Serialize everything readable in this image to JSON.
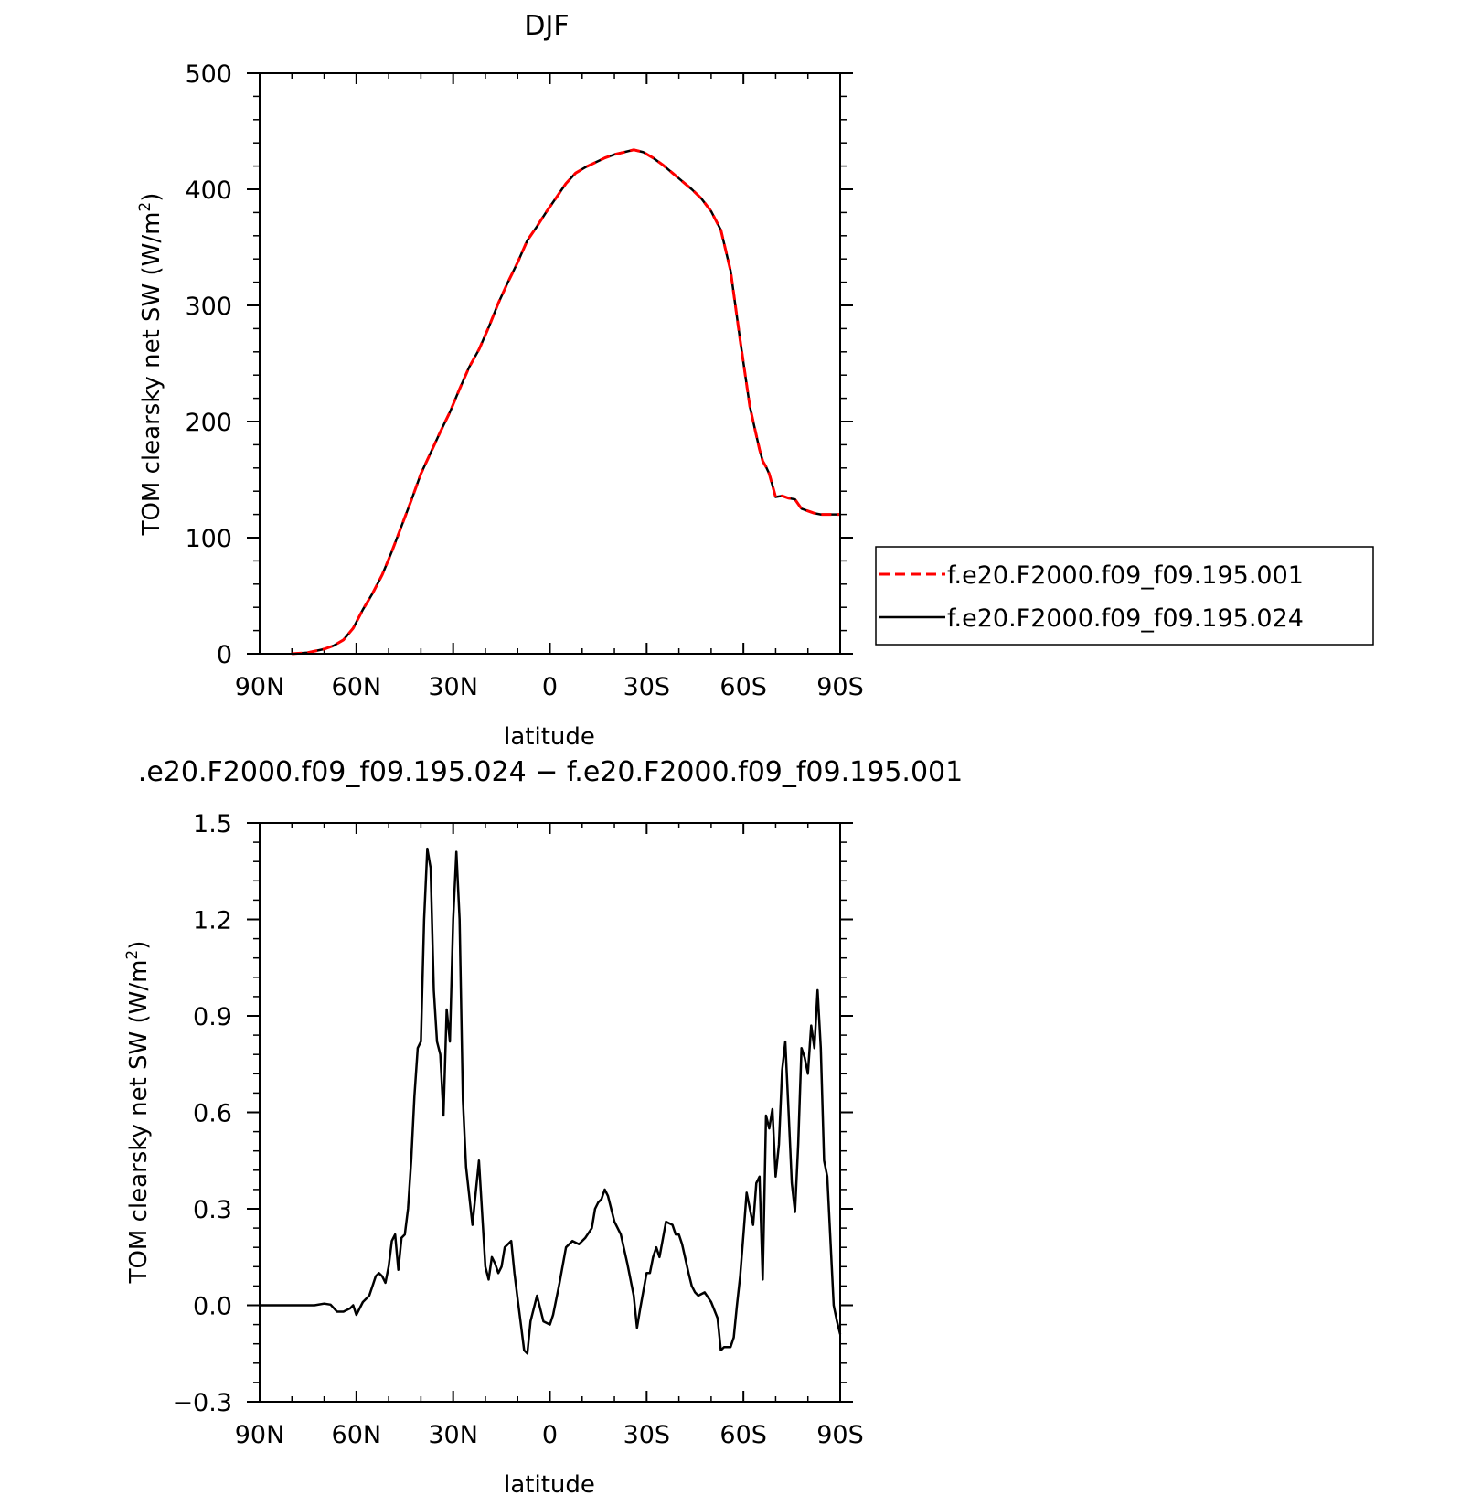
{
  "chart_data": [
    {
      "type": "line",
      "title": "DJF",
      "xlabel": "latitude",
      "ylabel": "TOM clearsky net SW (W/m",
      "ylabel_sup": "2",
      "ylabel_close": ")",
      "xlim": [
        90,
        -90
      ],
      "ylim": [
        0,
        500
      ],
      "xticks": [
        90,
        60,
        30,
        0,
        -30,
        -60,
        -90
      ],
      "xtick_labels": [
        "90N",
        "60N",
        "30N",
        "0",
        "30S",
        "60S",
        "90S"
      ],
      "yticks": [
        0,
        100,
        200,
        300,
        400,
        500
      ],
      "ytick_labels": [
        "0",
        "100",
        "200",
        "300",
        "400",
        "500"
      ],
      "legend": {
        "placement": "right"
      },
      "series": [
        {
          "name": "f.e20.F2000.f09_f09.195.001",
          "color": "#ff0000",
          "dash": "dashed",
          "x": [
            80,
            75,
            70,
            67,
            64,
            61,
            58,
            55,
            52,
            49,
            46,
            43,
            40,
            37,
            34,
            31,
            28,
            25,
            22,
            19,
            16,
            13,
            10,
            7,
            4,
            1,
            -2,
            -5,
            -8,
            -11,
            -14,
            -17,
            -20,
            -23,
            -26,
            -29,
            -32,
            -35,
            -38,
            -41,
            -44,
            -47,
            -50,
            -53,
            -56,
            -59,
            -62,
            -64,
            -65,
            -66,
            -67,
            -68,
            -70,
            -72,
            -74,
            -76,
            -77,
            -78,
            -80,
            -82,
            -84,
            -86,
            -88,
            -90
          ],
          "y": [
            0,
            1,
            4,
            7,
            12,
            22,
            38,
            52,
            68,
            88,
            110,
            132,
            155,
            173,
            191,
            208,
            228,
            247,
            262,
            281,
            302,
            320,
            337,
            356,
            368,
            381,
            393,
            405,
            414,
            419,
            423,
            427,
            430,
            432,
            434,
            432,
            427,
            421,
            414,
            407,
            400,
            392,
            381,
            365,
            330,
            270,
            213,
            188,
            176,
            166,
            161,
            155,
            135,
            136,
            134,
            133,
            129,
            125,
            123,
            121,
            120,
            120,
            120,
            120
          ]
        },
        {
          "name": "f.e20.F2000.f09_f09.195.024",
          "color": "#000000",
          "dash": "solid",
          "x": [
            80,
            75,
            70,
            67,
            64,
            61,
            58,
            55,
            52,
            49,
            46,
            43,
            40,
            37,
            34,
            31,
            28,
            25,
            22,
            19,
            16,
            13,
            10,
            7,
            4,
            1,
            -2,
            -5,
            -8,
            -11,
            -14,
            -17,
            -20,
            -23,
            -26,
            -29,
            -32,
            -35,
            -38,
            -41,
            -44,
            -47,
            -50,
            -53,
            -56,
            -59,
            -62,
            -64,
            -65,
            -66,
            -67,
            -68,
            -70,
            -72,
            -74,
            -76,
            -77,
            -78,
            -80,
            -82,
            -84,
            -86,
            -88,
            -90
          ],
          "y": [
            0,
            1,
            4,
            7,
            12,
            22,
            38,
            52,
            68,
            88,
            110,
            132,
            155,
            173,
            191,
            208,
            228,
            247,
            262,
            281,
            302,
            320,
            337,
            356,
            368,
            381,
            393,
            405,
            414,
            419,
            423,
            427,
            430,
            432,
            434,
            432,
            427,
            421,
            414,
            407,
            400,
            392,
            381,
            365,
            330,
            270,
            213,
            188,
            176,
            166,
            161,
            155,
            135,
            136,
            134,
            133,
            129,
            125,
            123,
            121,
            120,
            120,
            120,
            120
          ]
        }
      ]
    },
    {
      "type": "line",
      "title": ".e20.F2000.f09_f09.195.024 − f.e20.F2000.f09_f09.195.001",
      "xlabel": "latitude",
      "ylabel": "TOM clearsky net SW (W/m",
      "ylabel_sup": "2",
      "ylabel_close": ")",
      "xlim": [
        90,
        -90
      ],
      "ylim": [
        -0.3,
        1.5
      ],
      "xticks": [
        90,
        60,
        30,
        0,
        -30,
        -60,
        -90
      ],
      "xtick_labels": [
        "90N",
        "60N",
        "30N",
        "0",
        "30S",
        "60S",
        "90S"
      ],
      "yticks": [
        -0.3,
        0.0,
        0.3,
        0.6,
        0.9,
        1.2,
        1.5
      ],
      "ytick_labels": [
        "−0.3",
        "0.0",
        "0.3",
        "0.6",
        "0.9",
        "1.2",
        "1.5"
      ],
      "series": [
        {
          "color": "#000000",
          "x": [
            90,
            80,
            73,
            70,
            68,
            66,
            64,
            62,
            61,
            60,
            58,
            56,
            55,
            54,
            53,
            52,
            51,
            50,
            49,
            48,
            47,
            46,
            45,
            44,
            43,
            42,
            41,
            40,
            39,
            38,
            37,
            36,
            35,
            34,
            33,
            32,
            31,
            30,
            29,
            28,
            27,
            26,
            24,
            22,
            20,
            19,
            18,
            17,
            16,
            15,
            14,
            12,
            11,
            10,
            9,
            8,
            7,
            6,
            4,
            2,
            0,
            -1,
            -3,
            -5,
            -7,
            -9,
            -11,
            -13,
            -14,
            -15,
            -16,
            -17,
            -18,
            -20,
            -22,
            -24,
            -26,
            -27,
            -28,
            -30,
            -31,
            -32,
            -33,
            -34,
            -36,
            -38,
            -39,
            -40,
            -41,
            -43,
            -44,
            -45,
            -46,
            -48,
            -50,
            -52,
            -53,
            -54,
            -56,
            -57,
            -58,
            -59,
            -60,
            -61,
            -62,
            -63,
            -64,
            -65,
            -66,
            -67,
            -68,
            -69,
            -70,
            -71,
            -72,
            -73,
            -74,
            -75,
            -76,
            -77,
            -78,
            -79,
            -80,
            -81,
            -82,
            -83,
            -84,
            -85,
            -86,
            -87,
            -88,
            -89,
            -90
          ],
          "y": [
            0.0,
            0.0,
            0.0,
            0.005,
            0.002,
            -0.02,
            -0.02,
            -0.01,
            0.0,
            -0.03,
            0.01,
            0.03,
            0.06,
            0.09,
            0.1,
            0.09,
            0.07,
            0.12,
            0.2,
            0.22,
            0.11,
            0.21,
            0.22,
            0.3,
            0.45,
            0.65,
            0.8,
            0.82,
            1.2,
            1.42,
            1.36,
            0.98,
            0.82,
            0.78,
            0.59,
            0.92,
            0.82,
            1.2,
            1.41,
            1.2,
            0.64,
            0.43,
            0.25,
            0.45,
            0.12,
            0.08,
            0.15,
            0.13,
            0.1,
            0.12,
            0.18,
            0.2,
            0.1,
            0.02,
            -0.06,
            -0.14,
            -0.15,
            -0.05,
            0.03,
            -0.05,
            -0.06,
            -0.03,
            0.07,
            0.18,
            0.2,
            0.19,
            0.21,
            0.24,
            0.3,
            0.32,
            0.33,
            0.36,
            0.34,
            0.26,
            0.22,
            0.13,
            0.03,
            -0.07,
            -0.01,
            0.1,
            0.1,
            0.15,
            0.18,
            0.15,
            0.26,
            0.25,
            0.22,
            0.22,
            0.19,
            0.1,
            0.06,
            0.04,
            0.03,
            0.04,
            0.01,
            -0.04,
            -0.14,
            -0.13,
            -0.13,
            -0.1,
            0.0,
            0.09,
            0.22,
            0.35,
            0.3,
            0.25,
            0.38,
            0.4,
            0.08,
            0.59,
            0.55,
            0.61,
            0.4,
            0.5,
            0.73,
            0.82,
            0.6,
            0.38,
            0.29,
            0.5,
            0.8,
            0.77,
            0.72,
            0.87,
            0.8,
            0.98,
            0.8,
            0.45,
            0.4,
            0.2,
            0.0,
            -0.05,
            -0.09
          ]
        }
      ]
    }
  ]
}
